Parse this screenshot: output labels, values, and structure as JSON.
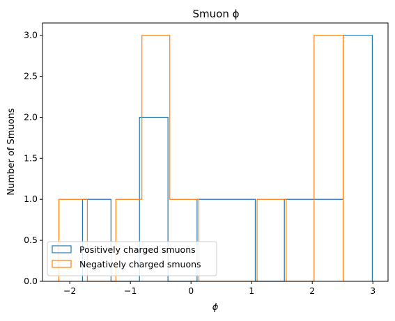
{
  "chart_data": {
    "type": "histogram",
    "title": "Smuon ϕ",
    "xlabel": "ϕ",
    "ylabel": "Number of Smuons",
    "xlim": [
      -2.45,
      3.25
    ],
    "ylim": [
      0,
      3.15
    ],
    "grid": false,
    "legend_position": "lower left",
    "xticks": [
      -2,
      -1,
      0,
      1,
      2,
      3
    ],
    "xtick_labels": [
      "−2",
      "−1",
      "0",
      "1",
      "2",
      "3"
    ],
    "yticks": [
      0,
      0.5,
      1,
      1.5,
      2,
      2.5,
      3
    ],
    "ytick_labels": [
      "0.0",
      "0.5",
      "1.0",
      "1.5",
      "2.0",
      "2.5",
      "3.0"
    ],
    "series": [
      {
        "name": "Positively charged smuons",
        "color": "#1f77b4",
        "bin_edges": [
          -1.79,
          -1.32,
          -0.85,
          -0.38,
          0.1,
          0.57,
          1.06,
          1.54,
          2.03,
          2.51,
          2.99
        ],
        "counts": [
          1,
          0,
          2,
          0,
          1,
          1,
          0,
          1,
          1,
          3
        ]
      },
      {
        "name": "Negatively charged smuons",
        "color": "#ff7f0e",
        "bin_edges": [
          -2.18,
          -1.71,
          -1.24,
          -0.81,
          -0.35,
          0.13,
          0.61,
          1.09,
          1.57,
          2.03,
          2.51
        ],
        "counts": [
          1,
          0,
          1,
          3,
          1,
          0,
          0,
          1,
          0,
          3
        ]
      }
    ]
  }
}
